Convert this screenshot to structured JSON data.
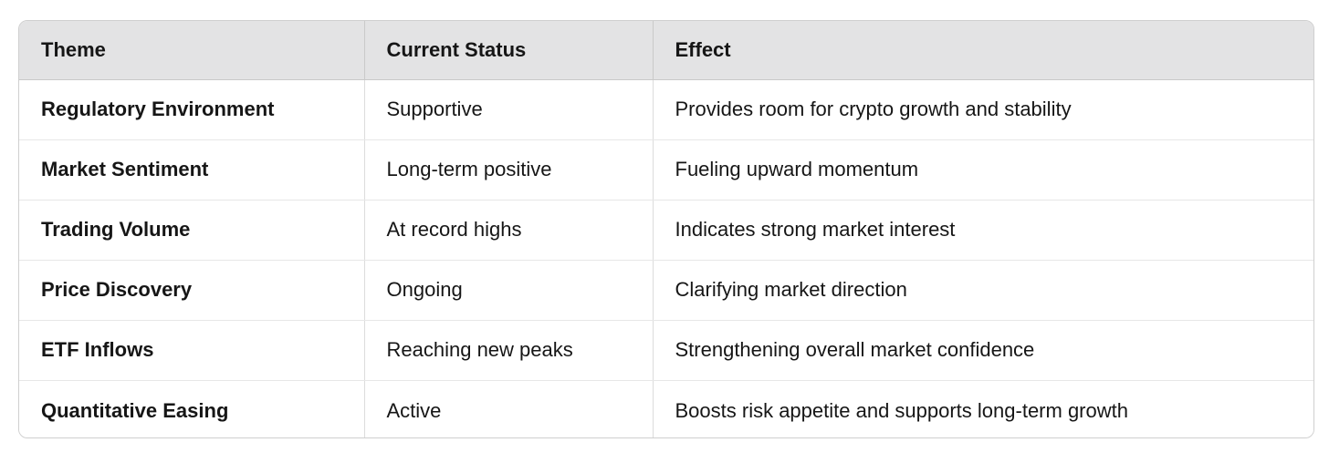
{
  "table": {
    "headers": {
      "theme": "Theme",
      "status": "Current Status",
      "effect": "Effect"
    },
    "rows": [
      {
        "theme": "Regulatory Environment",
        "status": "Supportive",
        "effect": "Provides room for crypto growth and stability"
      },
      {
        "theme": "Market Sentiment",
        "status": "Long-term positive",
        "effect": "Fueling upward momentum"
      },
      {
        "theme": "Trading Volume",
        "status": "At record highs",
        "effect": "Indicates strong market interest"
      },
      {
        "theme": "Price Discovery",
        "status": "Ongoing",
        "effect": "Clarifying market direction"
      },
      {
        "theme": "ETF Inflows",
        "status": "Reaching new peaks",
        "effect": "Strengthening overall market confidence"
      },
      {
        "theme": "Quantitative Easing",
        "status": "Active",
        "effect": "Boosts risk appetite and supports long-term growth"
      }
    ],
    "colors": {
      "header_background": "#e3e3e4",
      "outer_border": "#cfcfcf",
      "row_divider": "#e7e7e7",
      "column_divider": "#dcdcdc",
      "text": "#161616",
      "page_background": "#ffffff"
    }
  }
}
